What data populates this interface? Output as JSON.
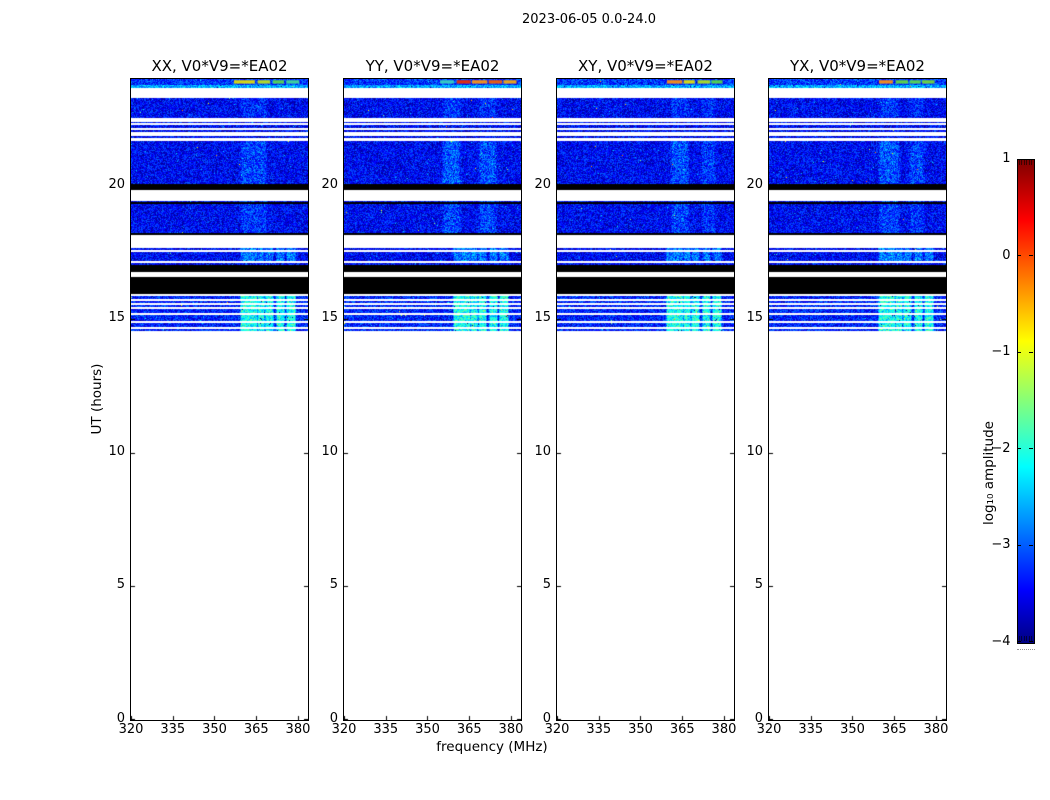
{
  "figure": {
    "suptitle": "2023-06-05 0.0-24.0",
    "background": "#ffffff"
  },
  "chart_data": {
    "type": "heatmap",
    "title": "2023-06-05 0.0-24.0",
    "xlabel": "frequency (MHz)",
    "ylabel": "UT (hours)",
    "xlim": [
      320,
      383.6
    ],
    "ylim": [
      0,
      24
    ],
    "xticks": [
      320,
      335,
      350,
      365,
      380
    ],
    "yticks": [
      0,
      5,
      10,
      15,
      20
    ],
    "time_coverage_ut": [
      14.56,
      24.0
    ],
    "colorbar": {
      "label": "log₁₀ amplitude",
      "vmin": -4,
      "vmax": 1,
      "cmap": "jet",
      "ticks": [
        {
          "v": 1,
          "label": "1"
        },
        {
          "v": 0,
          "label": "0"
        },
        {
          "v": -1,
          "label": "−1"
        },
        {
          "v": -2,
          "label": "−2"
        },
        {
          "v": -3,
          "label": "−3"
        },
        {
          "v": -4,
          "label": "−4"
        }
      ]
    },
    "panels": [
      {
        "id": "xx",
        "title": "XX, V0*V9=*EA02",
        "seed": 101,
        "glow_columns": [
          [
            360,
            368,
            0.42
          ]
        ],
        "top_segments": [
          [
            357,
            364.5,
            "#d6d616"
          ],
          [
            365.5,
            370,
            "#b0d82c"
          ],
          [
            371,
            375,
            "#55cf5a"
          ],
          [
            375.8,
            380.5,
            "#3ecf9e"
          ]
        ]
      },
      {
        "id": "yy",
        "title": "YY, V0*V9=*EA02",
        "seed": 202,
        "glow_columns": [
          [
            356,
            361,
            0.55
          ],
          [
            369,
            374,
            0.5
          ]
        ],
        "top_segments": [
          [
            354.5,
            359.5,
            "#35c9c2"
          ],
          [
            360.5,
            365.5,
            "#dd2e10"
          ],
          [
            366,
            371.5,
            "#ef8f1e"
          ],
          [
            372,
            376.8,
            "#e55c14"
          ],
          [
            377.3,
            382,
            "#e8a21f"
          ]
        ]
      },
      {
        "id": "xy",
        "title": "XY, V0*V9=*EA02",
        "seed": 303,
        "glow_columns": [
          [
            361.5,
            366.5,
            0.5
          ],
          [
            372.5,
            376,
            0.35
          ]
        ],
        "top_segments": [
          [
            359.5,
            365,
            "#ef8a1e"
          ],
          [
            365.5,
            369.5,
            "#d8d816"
          ],
          [
            370.5,
            375,
            "#a4d82d"
          ],
          [
            375.5,
            379.5,
            "#4fcf52"
          ]
        ]
      },
      {
        "id": "yx",
        "title": "YX, V0*V9=*EA02",
        "seed": 404,
        "glow_columns": [
          [
            360,
            366,
            0.5
          ],
          [
            371,
            375,
            0.4
          ]
        ],
        "top_segments": [
          [
            359.5,
            364.5,
            "#ef8a1e"
          ],
          [
            365.5,
            370,
            "#5ccf4e"
          ],
          [
            370.6,
            374.5,
            "#55cf58"
          ],
          [
            375,
            379.5,
            "#6ccf45"
          ]
        ]
      }
    ],
    "rfi_stripe_freqs": [
      [
        359.5,
        362
      ],
      [
        362.5,
        365
      ],
      [
        365.5,
        367.5
      ],
      [
        368.5,
        370.5
      ],
      [
        372.5,
        374.5
      ],
      [
        376,
        378.5
      ]
    ],
    "bands": [
      {
        "u1": 24.0,
        "u0": 23.78,
        "type": "noise",
        "bright": 0.25,
        "segments": true
      },
      {
        "u1": 23.78,
        "u0": 23.66,
        "type": "noise",
        "bright": 0.85
      },
      {
        "u1": 23.66,
        "u0": 23.28,
        "type": "white"
      },
      {
        "u1": 23.28,
        "u0": 22.59,
        "type": "noise",
        "glow": 0.6
      },
      {
        "u1": 22.59,
        "u0": 22.18,
        "type": "noise",
        "white_lines": [
          22.51,
          22.41,
          22.3
        ]
      },
      {
        "u1": 22.18,
        "u0": 21.66,
        "type": "white",
        "noise_lines": [
          [
            22.1,
            22.02
          ],
          [
            21.87,
            21.8
          ]
        ]
      },
      {
        "u1": 21.66,
        "u0": 20.08,
        "type": "noise",
        "glow": 1.0
      },
      {
        "u1": 20.08,
        "u0": 19.84,
        "type": "black"
      },
      {
        "u1": 19.84,
        "u0": 19.44,
        "type": "white"
      },
      {
        "u1": 19.44,
        "u0": 18.25,
        "type": "noise",
        "glow": 0.8,
        "black_lines": [
          19.37
        ]
      },
      {
        "u1": 18.25,
        "u0": 18.17,
        "type": "black"
      },
      {
        "u1": 18.17,
        "u0": 17.68,
        "type": "white"
      },
      {
        "u1": 17.68,
        "u0": 17.2,
        "type": "noise",
        "stripes": 0.5,
        "white_lines": [
          17.55
        ]
      },
      {
        "u1": 17.2,
        "u0": 17.12,
        "type": "white"
      },
      {
        "u1": 17.12,
        "u0": 17.05,
        "type": "noise"
      },
      {
        "u1": 17.05,
        "u0": 16.77,
        "type": "black"
      },
      {
        "u1": 16.77,
        "u0": 16.58,
        "type": "white"
      },
      {
        "u1": 16.58,
        "u0": 15.96,
        "type": "black"
      },
      {
        "u1": 15.96,
        "u0": 15.89,
        "type": "white"
      },
      {
        "u1": 15.89,
        "u0": 14.56,
        "type": "noise",
        "stripes": 1,
        "bright": 0.15,
        "white_lines": [
          15.74,
          15.59,
          15.44,
          15.21,
          14.91,
          14.69
        ]
      }
    ]
  }
}
